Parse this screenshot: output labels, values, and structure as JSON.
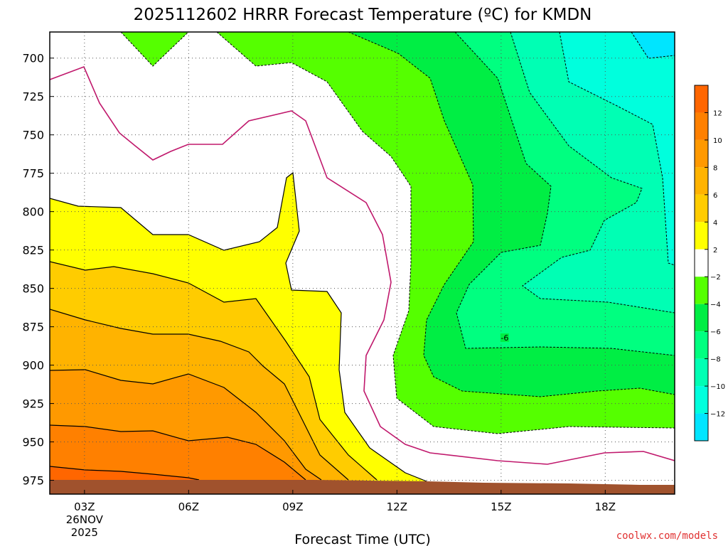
{
  "chart_data": {
    "type": "heatmap",
    "title": "2025112602 HRRR Forecast Temperature (ºC) for KMDN",
    "xlabel": "Forecast Time (UTC)",
    "ylabel": "",
    "x_ticks": [
      {
        "value": 3,
        "label": "03Z",
        "sub1": "26NOV",
        "sub2": "2025"
      },
      {
        "value": 6,
        "label": "06Z"
      },
      {
        "value": 9,
        "label": "09Z"
      },
      {
        "value": 12,
        "label": "12Z"
      },
      {
        "value": 15,
        "label": "15Z"
      },
      {
        "value": 18,
        "label": "18Z"
      }
    ],
    "xlim": [
      2,
      20
    ],
    "y_ticks": [
      700,
      725,
      750,
      775,
      800,
      825,
      850,
      875,
      900,
      925,
      950,
      975
    ],
    "ylim": [
      984,
      683
    ],
    "colorbar": {
      "ticks": [
        12,
        10,
        8,
        6,
        4,
        2,
        -2,
        -4,
        -6,
        -8,
        -10,
        -12
      ],
      "bins": [
        {
          "color": "#ff6600"
        },
        {
          "color": "#ff8000"
        },
        {
          "color": "#ff9900"
        },
        {
          "color": "#ffb300"
        },
        {
          "color": "#ffcc00"
        },
        {
          "color": "#ffff00"
        },
        {
          "color": "#ffffff"
        },
        {
          "color": "#55ff00"
        },
        {
          "color": "#00ee44"
        },
        {
          "color": "#00ff80"
        },
        {
          "color": "#00ffb4"
        },
        {
          "color": "#00ffdd"
        },
        {
          "color": "#00e5ff"
        }
      ]
    },
    "contour_labels": [
      {
        "x": 15.0,
        "y": 883,
        "text": "-6"
      }
    ],
    "terrain_color": "#a0522d",
    "zero_line_color": "#c0186c",
    "grid": true,
    "credit": "coolwx.com/models"
  }
}
